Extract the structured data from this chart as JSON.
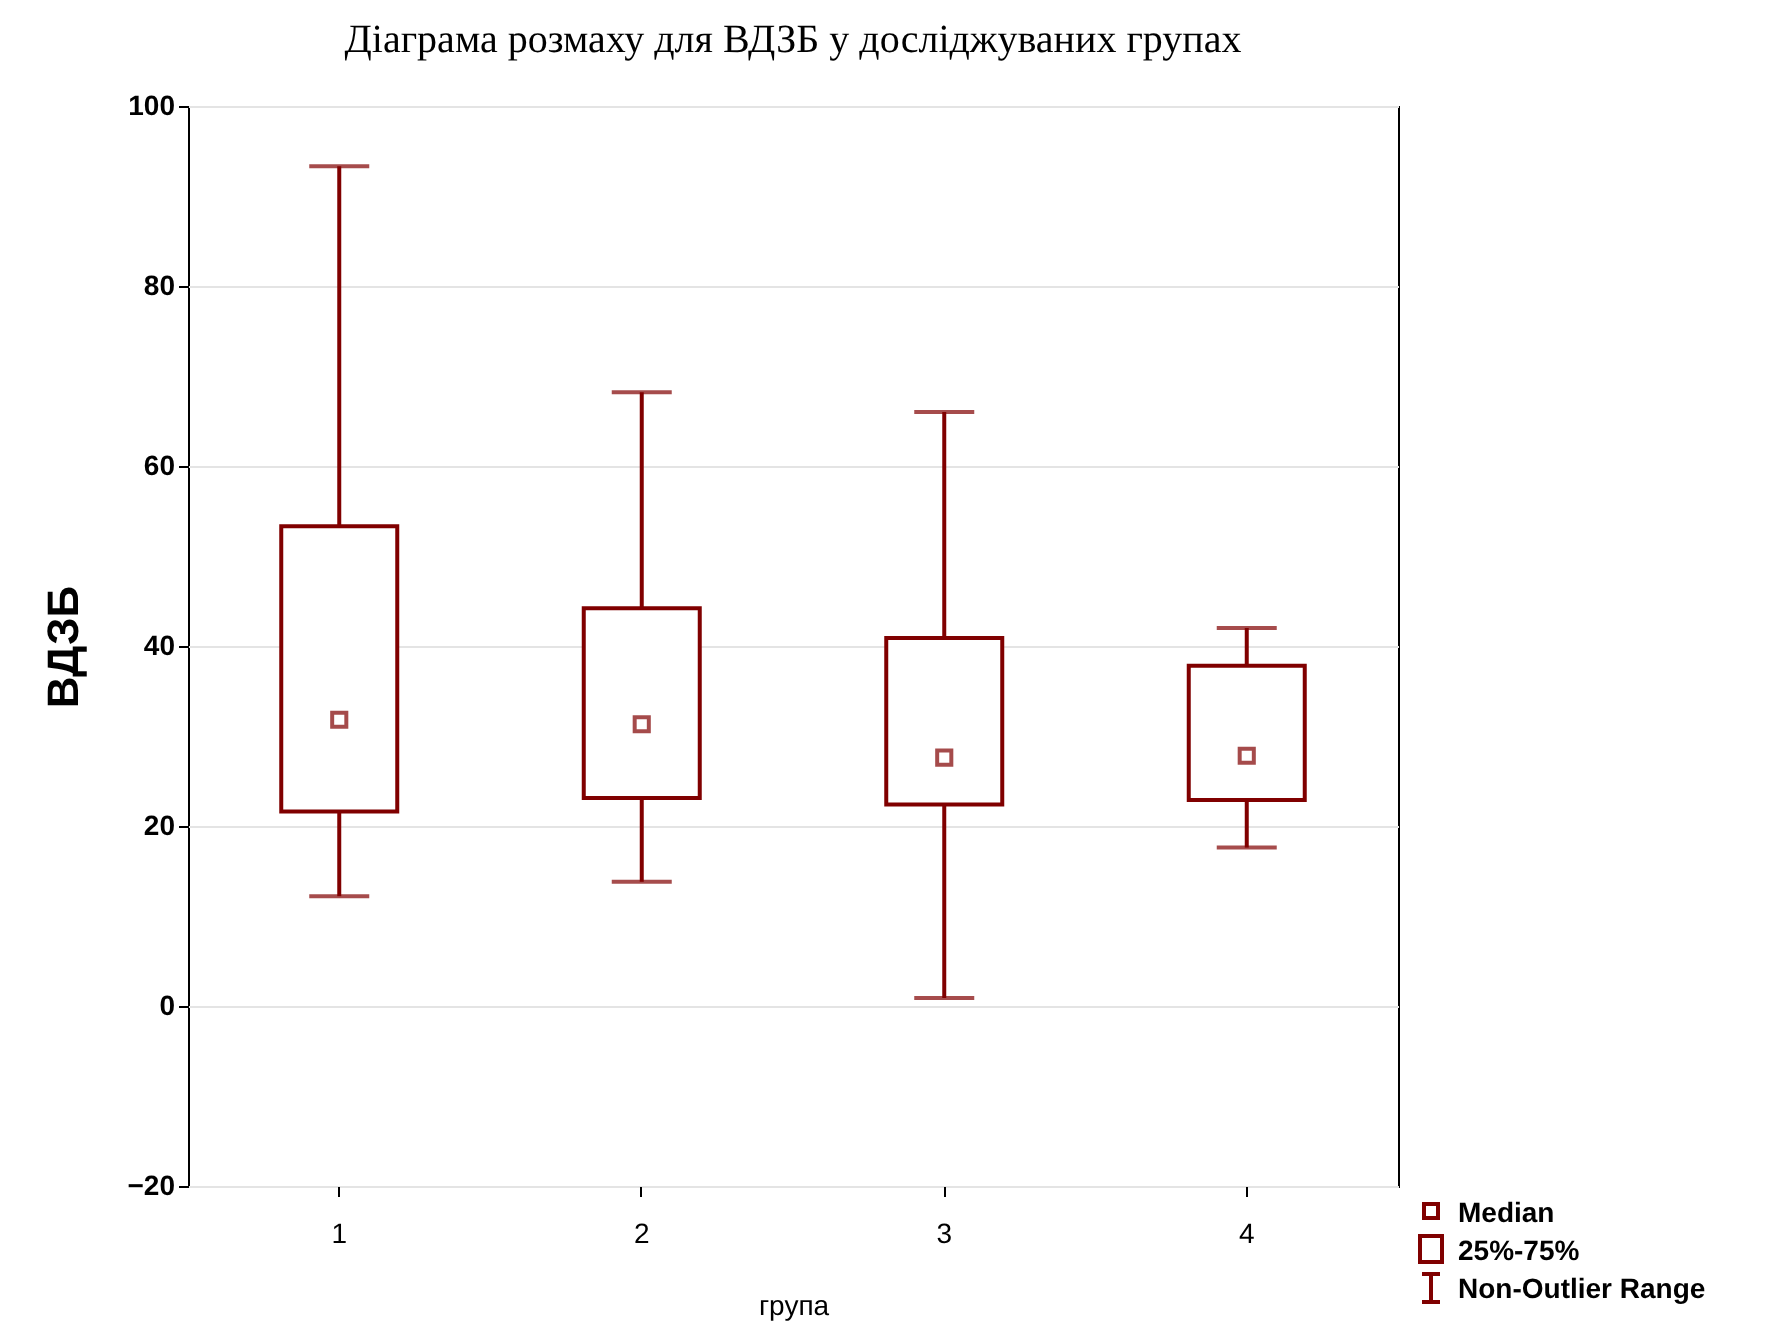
{
  "chart_data": {
    "type": "box",
    "title": "Діаграма розмаху для ВДЗБ у досліджуваних групах",
    "xlabel": "група",
    "ylabel": "ВДЗБ",
    "categories": [
      "1",
      "2",
      "3",
      "4"
    ],
    "series": [
      {
        "color": "#800000",
        "boxes": [
          {
            "low": 12.2,
            "q1": 21.6,
            "median": 31.8,
            "q3": 53.3,
            "high": 93.3
          },
          {
            "low": 13.8,
            "q1": 23.1,
            "median": 31.3,
            "q3": 44.2,
            "high": 68.2
          },
          {
            "low": 0.9,
            "q1": 22.4,
            "median": 27.6,
            "q3": 40.9,
            "high": 66
          },
          {
            "low": 17.6,
            "q1": 22.9,
            "median": 27.8,
            "q3": 37.8,
            "high": 42
          }
        ]
      }
    ],
    "ylim": [
      -20,
      100
    ],
    "yticks": [
      -20,
      0,
      20,
      40,
      60,
      80,
      100
    ],
    "grid": "y",
    "marker": "square",
    "annotations": [
      "Median",
      "25%-75%",
      "Non-Outlier Range"
    ]
  }
}
